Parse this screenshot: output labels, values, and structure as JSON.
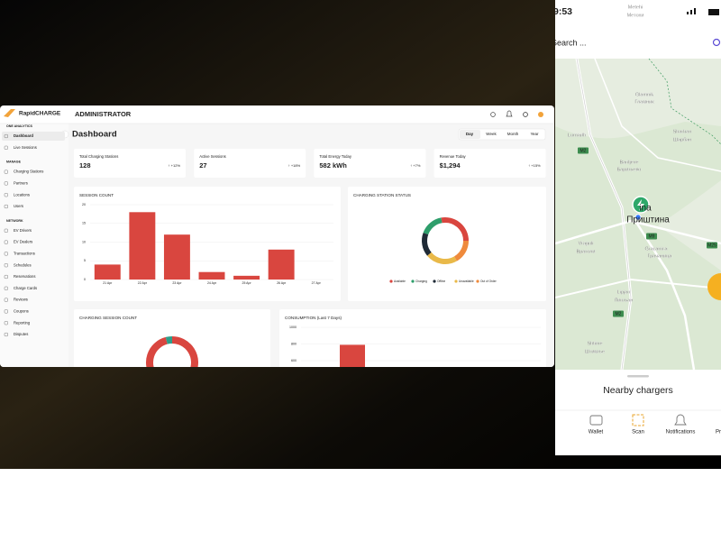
{
  "admin": {
    "brand": "RapidCHARGE",
    "role": "ADMINISTRATOR",
    "page_title": "Dashboard",
    "ranges": [
      "Day",
      "Week",
      "Month",
      "Year"
    ],
    "nav": [
      {
        "section": "ONE ANALYTICS",
        "items": [
          "Dashboard",
          "Live Sessions"
        ]
      },
      {
        "section": "MANAGE",
        "items": [
          "Charging Stations",
          "Partners",
          "Locations",
          "Users"
        ]
      },
      {
        "section": "NETWORK",
        "items": [
          "EV Drivers",
          "EV Dealers",
          "Transactions",
          "Schedules",
          "Reservations",
          "Charge Cards",
          "Reviews",
          "Coupons",
          "Reporting",
          "Disputes"
        ]
      }
    ],
    "stats": [
      {
        "label": "Total Charging Stations",
        "value": "128",
        "change": "↑ +12%"
      },
      {
        "label": "Active Sessions",
        "value": "27",
        "change": "↑ +18%"
      },
      {
        "label": "Total Energy Today",
        "value": "582 kWh",
        "change": "↑ +7%"
      },
      {
        "label": "Revenue Today",
        "value": "$1,294",
        "change": "↑ +15%"
      }
    ]
  },
  "chart_data": [
    {
      "type": "bar",
      "title": "SESSION COUNT",
      "color": "#d9463f",
      "categories": [
        "21 Apr",
        "22 Apr",
        "23 Apr",
        "24 Apr",
        "25 Apr",
        "26 Apr",
        "27 Apr"
      ],
      "values": [
        4,
        18,
        12,
        2,
        1,
        8,
        0
      ],
      "ylim": [
        0,
        20
      ],
      "yticks": [
        0,
        5,
        10,
        15,
        20
      ],
      "grid": true
    },
    {
      "type": "donut",
      "title": "CHARGING STATION STATUS",
      "categories": [
        "Available",
        "Charging",
        "Offline",
        "Unavailable",
        "Out of Order"
      ],
      "colors": [
        "#d9463f",
        "#2e9e6b",
        "#1f2a36",
        "#e9b949",
        "#ef8a3c"
      ],
      "values": [
        25,
        15,
        15,
        20,
        15
      ]
    },
    {
      "type": "donut",
      "title": "CHARGING SESSION COUNT",
      "colors": [
        "#d9463f",
        "#2e9e8a"
      ],
      "values": [
        96,
        4
      ]
    },
    {
      "type": "bar",
      "title": "CONSUMPTION (Last 7 Days)",
      "color": "#d9463f",
      "values": [
        790
      ],
      "ylim": [
        0,
        1000
      ],
      "yticks": [
        600,
        800,
        1000
      ],
      "grid": true
    }
  ],
  "phone": {
    "time": "9:53",
    "search": "Search ...",
    "places": [
      "Metehi",
      "Метохи",
      "Lumadh",
      "Glamnik",
      "Гламник",
      "Sharban",
      "Шарбан",
      "Bariljeve",
      "Бариљево",
      "ina",
      "Приштина",
      "Vragoli",
      "Враголи",
      "Graçanica",
      "Грачаница",
      "Lipjan",
      "Липљан",
      "Shtime",
      "Штимље"
    ],
    "roads": [
      "M2",
      "M25",
      "M2",
      "M9"
    ],
    "sheet_title": "Nearby chargers",
    "tabs": [
      "Wallet",
      "Scan",
      "Notifications",
      "Pr"
    ]
  }
}
